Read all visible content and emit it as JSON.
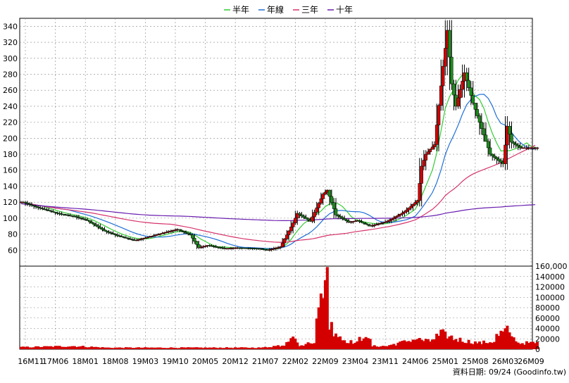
{
  "chart_data": {
    "type": "candlestick",
    "title": "",
    "legend": {
      "placement": "top-center",
      "items": [
        {
          "label": "半年",
          "color": "#33cc33"
        },
        {
          "label": "年線",
          "color": "#1f6fd6"
        },
        {
          "label": "三年",
          "color": "#d6336c"
        },
        {
          "label": "十年",
          "color": "#6a1fb0"
        }
      ]
    },
    "colors": {
      "up": "#d40000",
      "down": "#1a8f1a",
      "volume": "#d40000",
      "grid": "#888888"
    },
    "grid": true,
    "price_axis": {
      "side": "left",
      "ylim": [
        40,
        350
      ],
      "ticks": [
        60,
        80,
        100,
        120,
        140,
        160,
        180,
        200,
        220,
        240,
        260,
        280,
        300,
        320,
        340
      ]
    },
    "volume_axis": {
      "side": "right",
      "ylim": [
        0,
        160000
      ],
      "ticks": [
        0,
        20000,
        40000,
        60000,
        80000,
        100000,
        120000,
        140000,
        160000
      ],
      "tick_labels": [
        "0",
        "20000",
        "40000",
        "60000",
        "80000",
        "100000",
        "120000",
        "140000",
        "160,000"
      ]
    },
    "x_tick_labels": [
      "16M11",
      "17M06",
      "18M01",
      "18M08",
      "19M03",
      "19M10",
      "20M05",
      "20M12",
      "21M07",
      "22M02",
      "22M09",
      "23M04",
      "23M11",
      "24M06",
      "25M01",
      "25M08",
      "26M03",
      "26M09"
    ],
    "months": [
      "2016-11",
      "2017-06",
      "2018-01",
      "2018-08",
      "2019-03",
      "2019-10",
      "2020-05",
      "2020-12",
      "2021-07",
      "2022-02",
      "2022-09",
      "2023-04",
      "2023-11",
      "2024-06",
      "2025-01",
      "2025-08",
      "2026-03",
      "2026-09"
    ],
    "price_anchors": [
      [
        "2016-10",
        120
      ],
      [
        "2016-11",
        118
      ],
      [
        "2017-01",
        114
      ],
      [
        "2017-06",
        106
      ],
      [
        "2017-10",
        102
      ],
      [
        "2018-01",
        97
      ],
      [
        "2018-05",
        84
      ],
      [
        "2018-08",
        78
      ],
      [
        "2018-12",
        72
      ],
      [
        "2019-03",
        76
      ],
      [
        "2019-07",
        82
      ],
      [
        "2019-10",
        86
      ],
      [
        "2020-01",
        79
      ],
      [
        "2020-03",
        63
      ],
      [
        "2020-05",
        66
      ],
      [
        "2020-09",
        62
      ],
      [
        "2020-12",
        63
      ],
      [
        "2021-05",
        62
      ],
      [
        "2021-07",
        60
      ],
      [
        "2021-10",
        64
      ],
      [
        "2022-01",
        94
      ],
      [
        "2022-02",
        106
      ],
      [
        "2022-05",
        96
      ],
      [
        "2022-08",
        130
      ],
      [
        "2022-09",
        135
      ],
      [
        "2022-11",
        104
      ],
      [
        "2023-02",
        95
      ],
      [
        "2023-04",
        97
      ],
      [
        "2023-07",
        90
      ],
      [
        "2023-11",
        96
      ],
      [
        "2024-03",
        108
      ],
      [
        "2024-06",
        122
      ],
      [
        "2024-07",
        165
      ],
      [
        "2024-08",
        180
      ],
      [
        "2024-10",
        192
      ],
      [
        "2024-12",
        290
      ],
      [
        "2025-01",
        335
      ],
      [
        "2025-02",
        268
      ],
      [
        "2025-03",
        240
      ],
      [
        "2025-05",
        282
      ],
      [
        "2025-07",
        244
      ],
      [
        "2025-09",
        212
      ],
      [
        "2025-11",
        180
      ],
      [
        "2026-01",
        172
      ],
      [
        "2026-02",
        168
      ],
      [
        "2026-03",
        215
      ],
      [
        "2026-04",
        195
      ],
      [
        "2026-06",
        188
      ]
    ],
    "volume_anchors": [
      [
        "2016-10",
        4000
      ],
      [
        "2017-10",
        6000
      ],
      [
        "2018-06",
        3000
      ],
      [
        "2019-06",
        3000
      ],
      [
        "2020-06",
        3000
      ],
      [
        "2021-06",
        3000
      ],
      [
        "2021-11",
        8000
      ],
      [
        "2022-01",
        28000
      ],
      [
        "2022-03",
        6000
      ],
      [
        "2022-06",
        15000
      ],
      [
        "2022-07",
        72000
      ],
      [
        "2022-08",
        90000
      ],
      [
        "2022-09",
        160000
      ],
      [
        "2022-10",
        45000
      ],
      [
        "2022-11",
        35000
      ],
      [
        "2023-01",
        18000
      ],
      [
        "2023-04",
        12000
      ],
      [
        "2023-06",
        28000
      ],
      [
        "2023-08",
        6000
      ],
      [
        "2023-11",
        6000
      ],
      [
        "2024-06",
        20000
      ],
      [
        "2024-09",
        15000
      ],
      [
        "2024-12",
        30000
      ],
      [
        "2025-03",
        20000
      ],
      [
        "2025-06",
        15000
      ],
      [
        "2025-09",
        12000
      ],
      [
        "2025-12",
        15000
      ],
      [
        "2026-01",
        26000
      ],
      [
        "2026-03",
        36000
      ],
      [
        "2026-06",
        12000
      ]
    ],
    "source_text": "資料日期: 09/24  (Goodinfo.tw)"
  }
}
